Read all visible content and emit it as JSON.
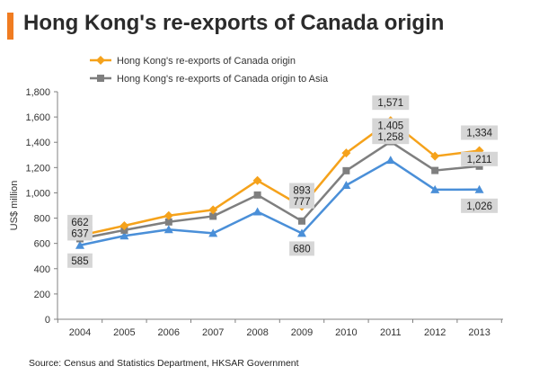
{
  "title": "Hong Kong's re-exports of Canada origin",
  "source": "Source: Census and Statistics Department, HKSAR Government",
  "colors": {
    "accent": "#f07c21",
    "series_orange": "#f5a21b",
    "series_grey": "#7f7f7f",
    "series_blue": "#4a8fd8",
    "label_box": "#d6d6d6"
  },
  "chart_data": {
    "type": "line",
    "ylabel": "US$ million",
    "xlabel": "",
    "ylim": [
      0,
      1800
    ],
    "yticks": [
      0,
      200,
      400,
      600,
      800,
      1000,
      1200,
      1400,
      1600,
      1800
    ],
    "ytick_labels": [
      "0",
      "200",
      "400",
      "600",
      "800",
      "1,000",
      "1,200",
      "1,400",
      "1,600",
      "1,800"
    ],
    "categories": [
      "2004",
      "2005",
      "2006",
      "2007",
      "2008",
      "2009",
      "2010",
      "2011",
      "2012",
      "2013"
    ],
    "grid": false,
    "legend": "top",
    "series": [
      {
        "name": "Hong Kong's re-exports of Canada origin",
        "marker": "diamond",
        "color": "#f5a21b",
        "values": [
          662,
          740,
          820,
          865,
          1097,
          893,
          1315,
          1571,
          1290,
          1334
        ],
        "in_legend": true
      },
      {
        "name": "Hong Kong's re-exports of Canada origin to Asia",
        "marker": "square",
        "color": "#7f7f7f",
        "values": [
          637,
          705,
          770,
          815,
          983,
          777,
          1175,
          1405,
          1177,
          1211
        ],
        "in_legend": true
      },
      {
        "name": "",
        "marker": "triangle",
        "color": "#4a8fd8",
        "values": [
          585,
          660,
          710,
          680,
          850,
          680,
          1060,
          1258,
          1025,
          1026
        ],
        "in_legend": false
      }
    ],
    "data_labels": [
      {
        "series": 0,
        "index": 0,
        "text": "662"
      },
      {
        "series": 1,
        "index": 0,
        "text": "637"
      },
      {
        "series": 2,
        "index": 0,
        "text": "585"
      },
      {
        "series": 0,
        "index": 5,
        "text": "893"
      },
      {
        "series": 1,
        "index": 5,
        "text": "777"
      },
      {
        "series": 2,
        "index": 5,
        "text": "680"
      },
      {
        "series": 0,
        "index": 7,
        "text": "1,571"
      },
      {
        "series": 1,
        "index": 7,
        "text": "1,405"
      },
      {
        "series": 2,
        "index": 7,
        "text": "1,258"
      },
      {
        "series": 0,
        "index": 9,
        "text": "1,334"
      },
      {
        "series": 1,
        "index": 9,
        "text": "1,211"
      },
      {
        "series": 2,
        "index": 9,
        "text": "1,026"
      }
    ]
  }
}
